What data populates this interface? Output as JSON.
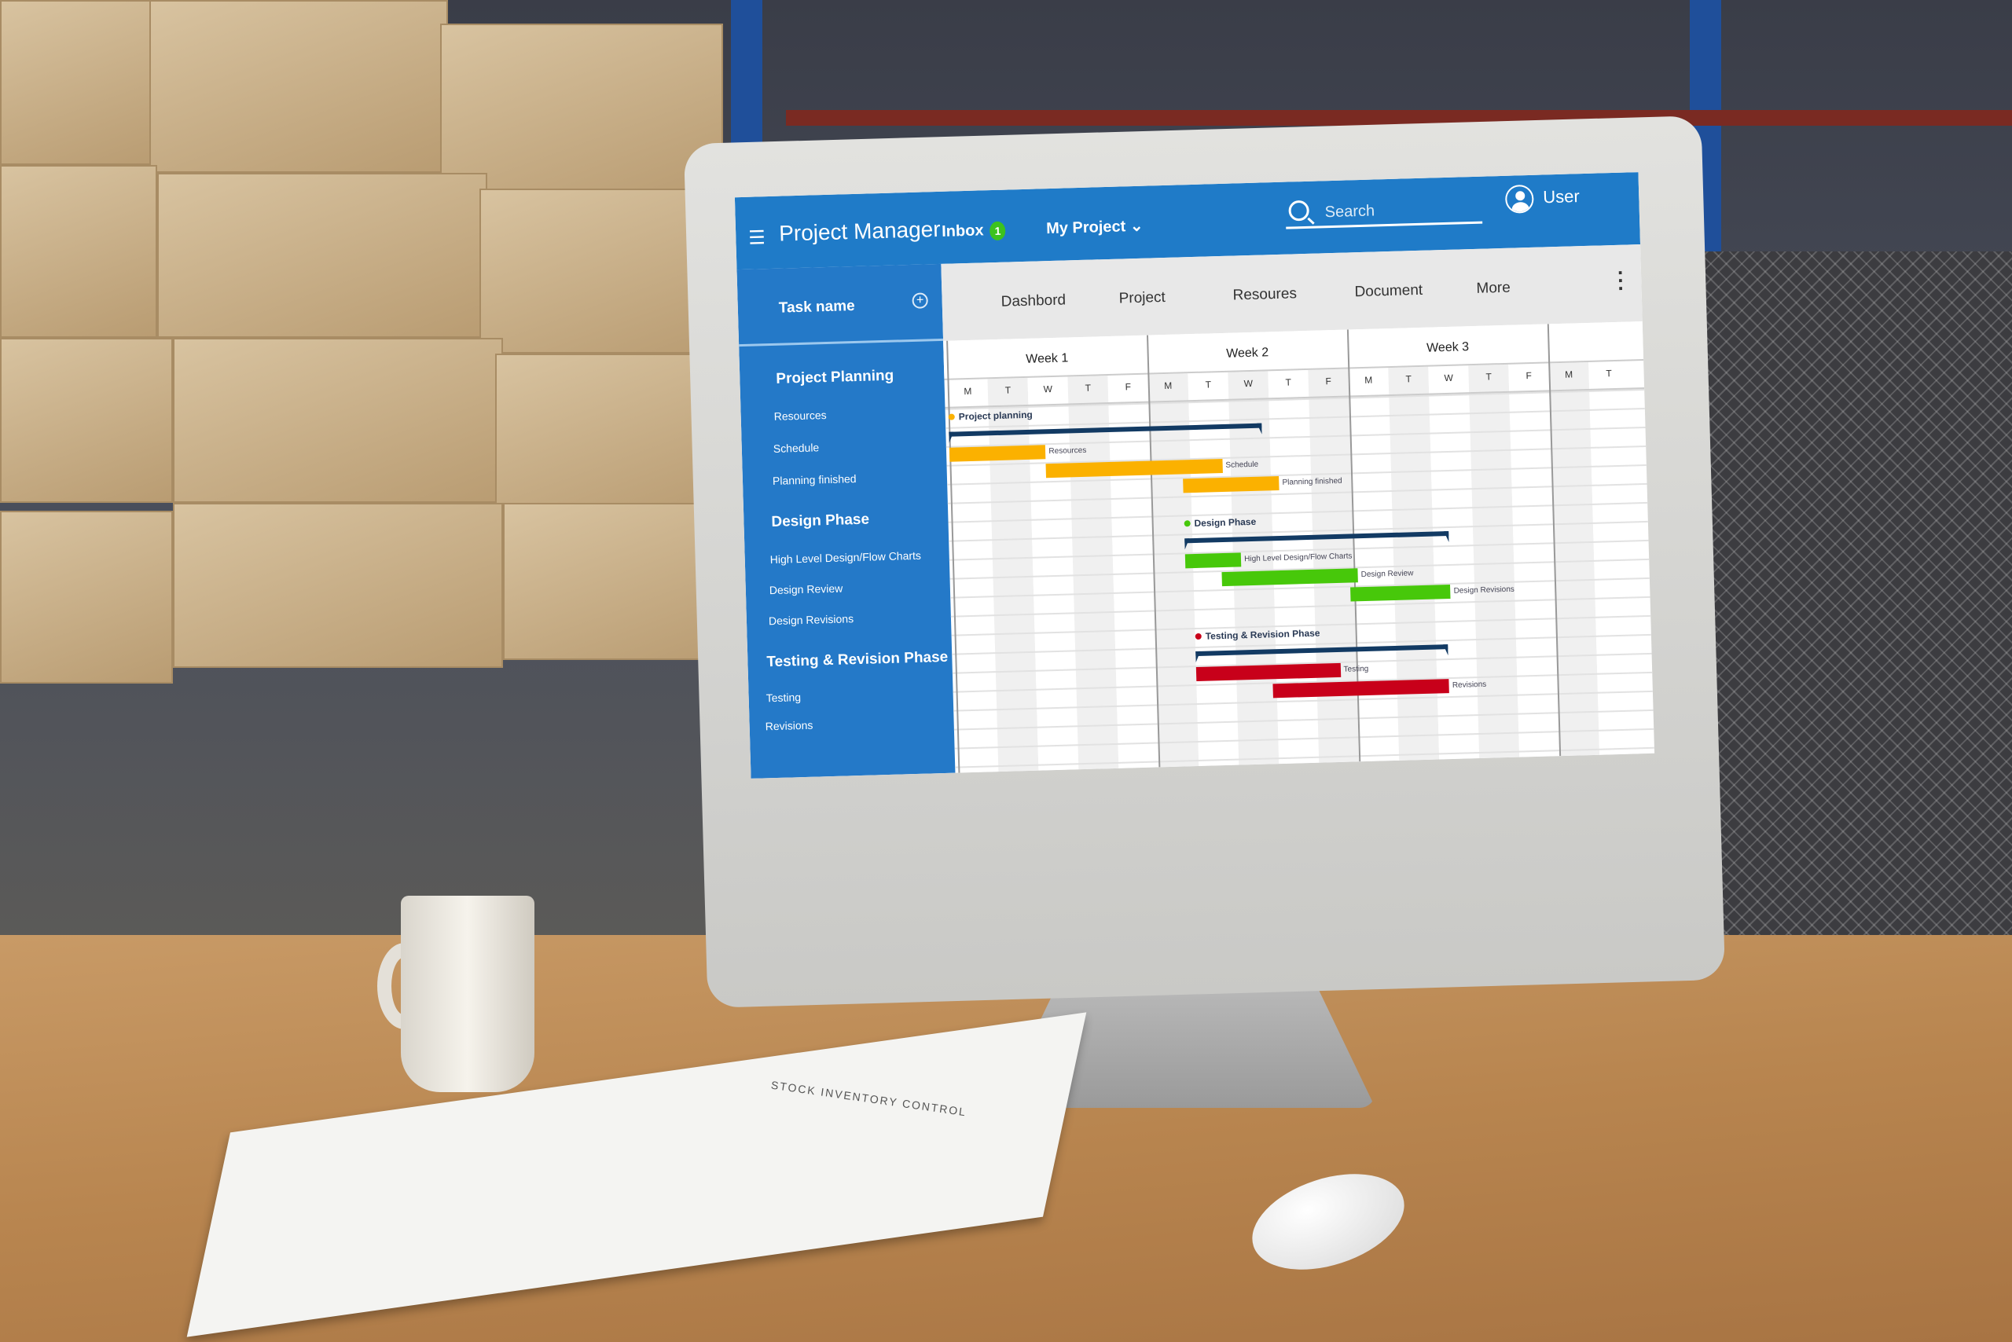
{
  "header": {
    "app_title": "Project Manager",
    "inbox_label": "Inbox",
    "inbox_count": "1",
    "project_menu": "My Project",
    "search_placeholder": "Search",
    "user_label": "User",
    "brand_color": "#1f7bc8"
  },
  "tabs": [
    "Dashbord",
    "Project",
    "Resoures",
    "Document",
    "More"
  ],
  "sidebar": {
    "column_header": "Task name",
    "groups": [
      {
        "label": "Project Planning",
        "items": [
          "Resources",
          "Schedule",
          "Planning finished"
        ]
      },
      {
        "label": "Design Phase",
        "items": [
          "High Level Design/Flow Charts",
          "Design Review",
          "Design Revisions"
        ]
      },
      {
        "label": "Testing & Revision Phase",
        "items": [
          "Testing",
          "Revisions"
        ]
      }
    ]
  },
  "papers_title": "STOCK INVENTORY CONTROL",
  "chart_data": {
    "type": "gantt",
    "weeks": [
      "Week 1",
      "Week 2",
      "Week 3"
    ],
    "days": [
      "M",
      "T",
      "W",
      "T",
      "F",
      "M",
      "T",
      "W",
      "T",
      "F",
      "M",
      "T",
      "W",
      "T",
      "F",
      "M",
      "T"
    ],
    "phases": [
      {
        "name": "Project planning",
        "color": "#fbb100",
        "span": [
          0,
          7.8
        ],
        "tasks": [
          {
            "name": "Resources",
            "start": 0,
            "end": 2.4
          },
          {
            "name": "Schedule",
            "start": 2.4,
            "end": 6.8
          },
          {
            "name": "Planning finished",
            "start": 5.8,
            "end": 8.2
          }
        ]
      },
      {
        "name": "Design Phase",
        "color": "#47c80a",
        "span": [
          5.8,
          12.4
        ],
        "tasks": [
          {
            "name": "High Level Design/Flow Charts",
            "start": 5.8,
            "end": 7.2
          },
          {
            "name": "Design Review",
            "start": 6.7,
            "end": 10.1
          },
          {
            "name": "Design Revisions",
            "start": 9.9,
            "end": 12.4
          }
        ]
      },
      {
        "name": "Testing & Revision Phase",
        "color": "#c8001a",
        "span": [
          6,
          12.3
        ],
        "tasks": [
          {
            "name": "Testing",
            "start": 6,
            "end": 9.6
          },
          {
            "name": "Revisions",
            "start": 7.9,
            "end": 12.3
          }
        ]
      }
    ]
  }
}
